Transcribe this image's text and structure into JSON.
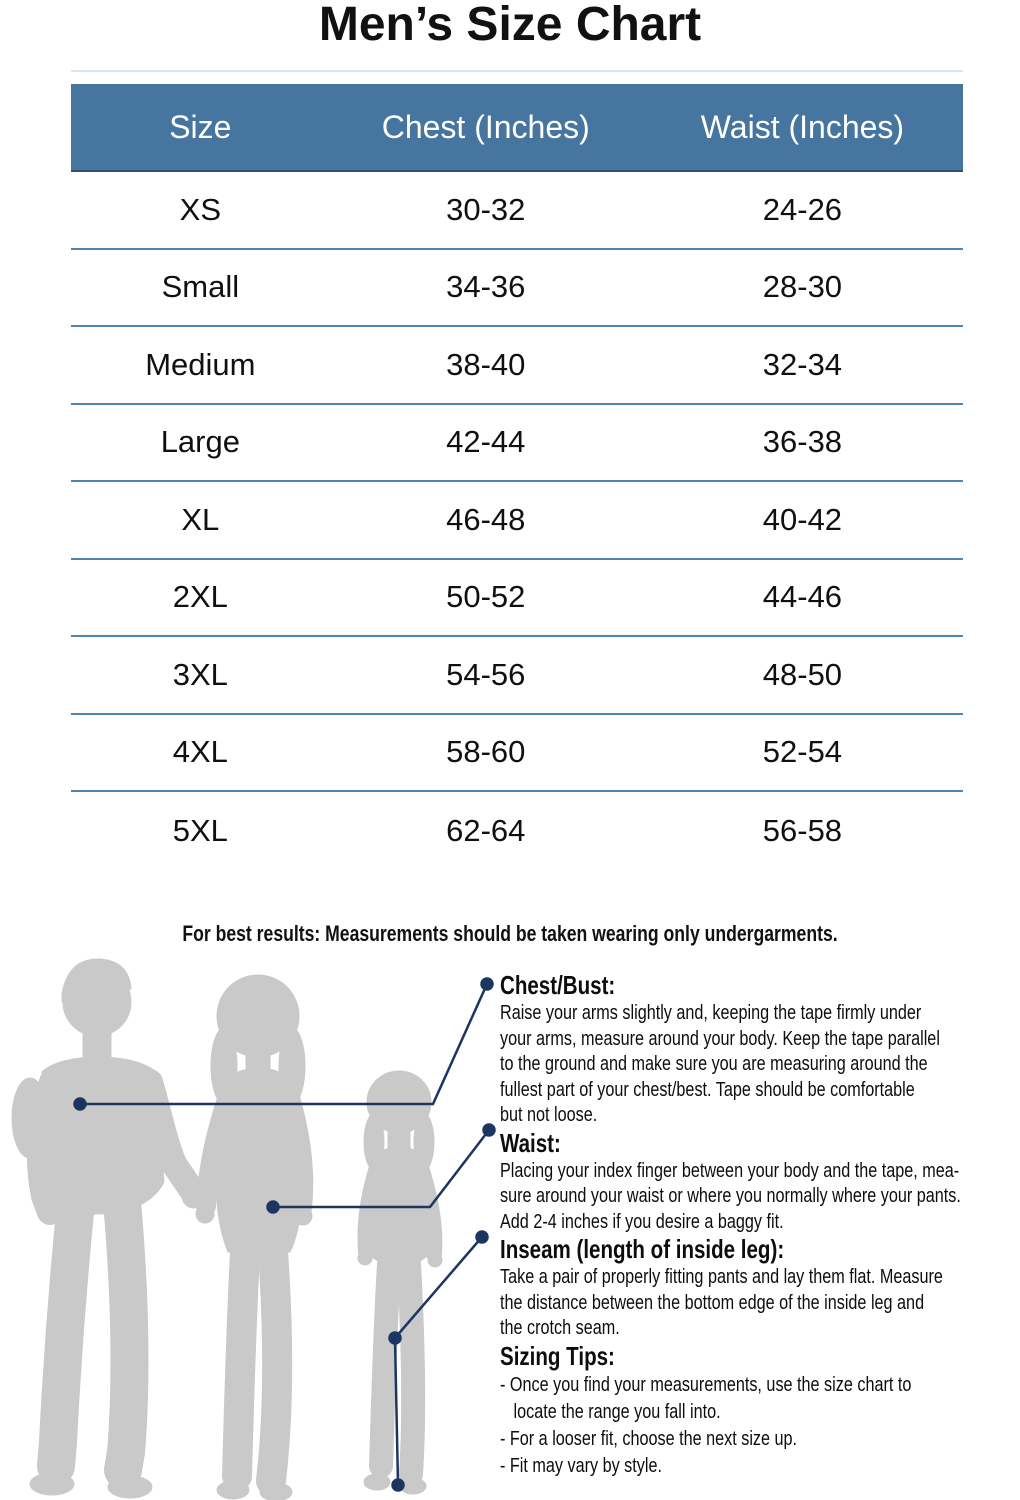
{
  "page": {
    "title": "Men’s Size Chart",
    "text_color": "#111111",
    "background": "#ffffff"
  },
  "size_table": {
    "columns": [
      "Size",
      "Chest (Inches)",
      "Waist (Inches)"
    ],
    "rows": [
      [
        "XS",
        "30-32",
        "24-26"
      ],
      [
        "Small",
        "34-36",
        "28-30"
      ],
      [
        "Medium",
        "38-40",
        "32-34"
      ],
      [
        "Large",
        "42-44",
        "36-38"
      ],
      [
        "XL",
        "46-48",
        "40-42"
      ],
      [
        "2XL",
        "50-52",
        "44-46"
      ],
      [
        "3XL",
        "54-56",
        "48-50"
      ],
      [
        "4XL",
        "58-60",
        "52-54"
      ],
      [
        "5XL",
        "62-64",
        "56-58"
      ]
    ],
    "header_bg": "#46759f",
    "header_text_color": "#ffffff",
    "divider_color": "#4d86b4"
  },
  "note": "For best results: Measurements should be taken wearing only undergarments.",
  "guide": {
    "line_color": "#1c3661",
    "silhouette_color": "#c9c9c9",
    "sections": [
      {
        "heading": "Chest/Bust:",
        "body": "Raise your arms slightly and, keeping the tape firmly under\nyour arms, measure around your body. Keep the tape parallel\nto the ground and make sure you are measuring around the\nfullest part of your chest/best. Tape should be comfortable\nbut not loose."
      },
      {
        "heading": "Waist:",
        "body": "Placing your index finger between your body and the tape, mea-\nsure around your waist or where you normally where your pants.\nAdd 2-4 inches if you desire a baggy fit."
      },
      {
        "heading": "Inseam (length of inside leg):",
        "body": "Take a pair of properly fitting pants and lay them flat. Measure\nthe distance between the bottom edge of the inside leg and\nthe crotch seam."
      },
      {
        "heading": "Sizing Tips:",
        "body": "- Once you find your measurements, use the size chart to\n   locate the range you fall into.\n- For a looser fit, choose the next size up.\n- Fit may vary by style."
      }
    ]
  }
}
